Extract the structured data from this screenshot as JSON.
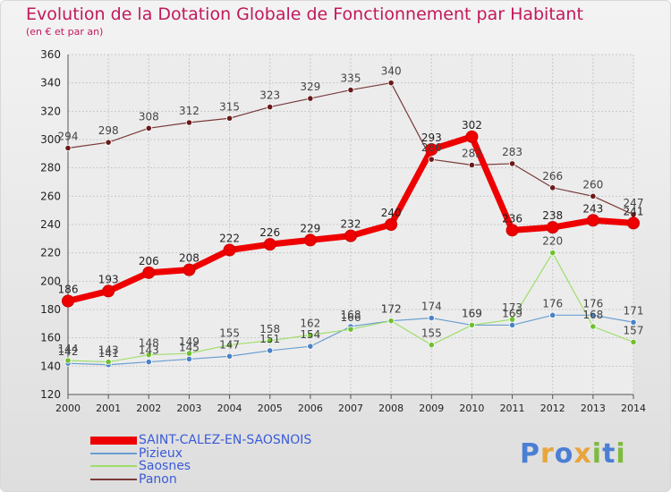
{
  "title": "Evolution de la Dotation Globale de Fonctionnement par Habitant",
  "subtitle": "(en € et par an)",
  "logo": {
    "letters": [
      "P",
      "r",
      "o",
      "x",
      "i",
      "t",
      "i"
    ],
    "colors": [
      "#4a7fd4",
      "#e7a53c",
      "#4a7fd4",
      "#e7a53c",
      "#7fba3e",
      "#4a7fd4",
      "#7fba3e"
    ]
  },
  "chart_data": {
    "type": "line",
    "x": [
      "2000",
      "2001",
      "2002",
      "2003",
      "2004",
      "2005",
      "2006",
      "2007",
      "2008",
      "2009",
      "2010",
      "2011",
      "2012",
      "2013",
      "2014"
    ],
    "ylim": [
      120,
      360
    ],
    "yticks": [
      "120",
      "140",
      "160",
      "180",
      "200",
      "220",
      "240",
      "260",
      "280",
      "300",
      "320",
      "340",
      "360"
    ],
    "grid": true,
    "legend": "bottom-left",
    "series": [
      {
        "name": "SAINT-CALEZ-EN-SAOSNOIS",
        "color": "#ee0000",
        "values": [
          186,
          193,
          206,
          208,
          222,
          226,
          229,
          232,
          240,
          293,
          302,
          236,
          238,
          243,
          241
        ],
        "labels": [
          "186",
          "193",
          "206",
          "208",
          "222",
          "226",
          "229",
          "232",
          "240",
          "293",
          "302",
          "236",
          "238",
          "243",
          "241"
        ]
      },
      {
        "name": "Pizieux",
        "color": "#6a9ed0",
        "values": [
          142,
          141,
          143,
          145,
          147,
          151,
          154,
          168,
          172,
          174,
          169,
          169,
          176,
          176,
          171
        ],
        "labels": [
          "142",
          "141",
          "143",
          "145",
          "147",
          "151",
          "154",
          "168",
          "172",
          "174",
          "169",
          "169",
          "176",
          "176",
          "171"
        ]
      },
      {
        "name": "Saosnes",
        "color": "#9fde6a",
        "values": [
          144,
          143,
          148,
          149,
          155,
          158,
          162,
          166,
          172,
          155,
          169,
          173,
          220,
          168,
          157
        ],
        "labels": [
          "144",
          "143",
          "148",
          "149",
          "155",
          "158",
          "162",
          "166",
          "172",
          "155",
          "169",
          "173",
          "220",
          "168",
          "157"
        ]
      },
      {
        "name": "Panon",
        "color": "#7a3a3a",
        "values": [
          294,
          298,
          308,
          312,
          315,
          323,
          329,
          335,
          340,
          286,
          282,
          283,
          266,
          260,
          247
        ],
        "labels": [
          "294",
          "298",
          "308",
          "312",
          "315",
          "323",
          "329",
          "335",
          "340",
          "286",
          "282",
          "283",
          "266",
          "260",
          "247"
        ]
      }
    ]
  }
}
